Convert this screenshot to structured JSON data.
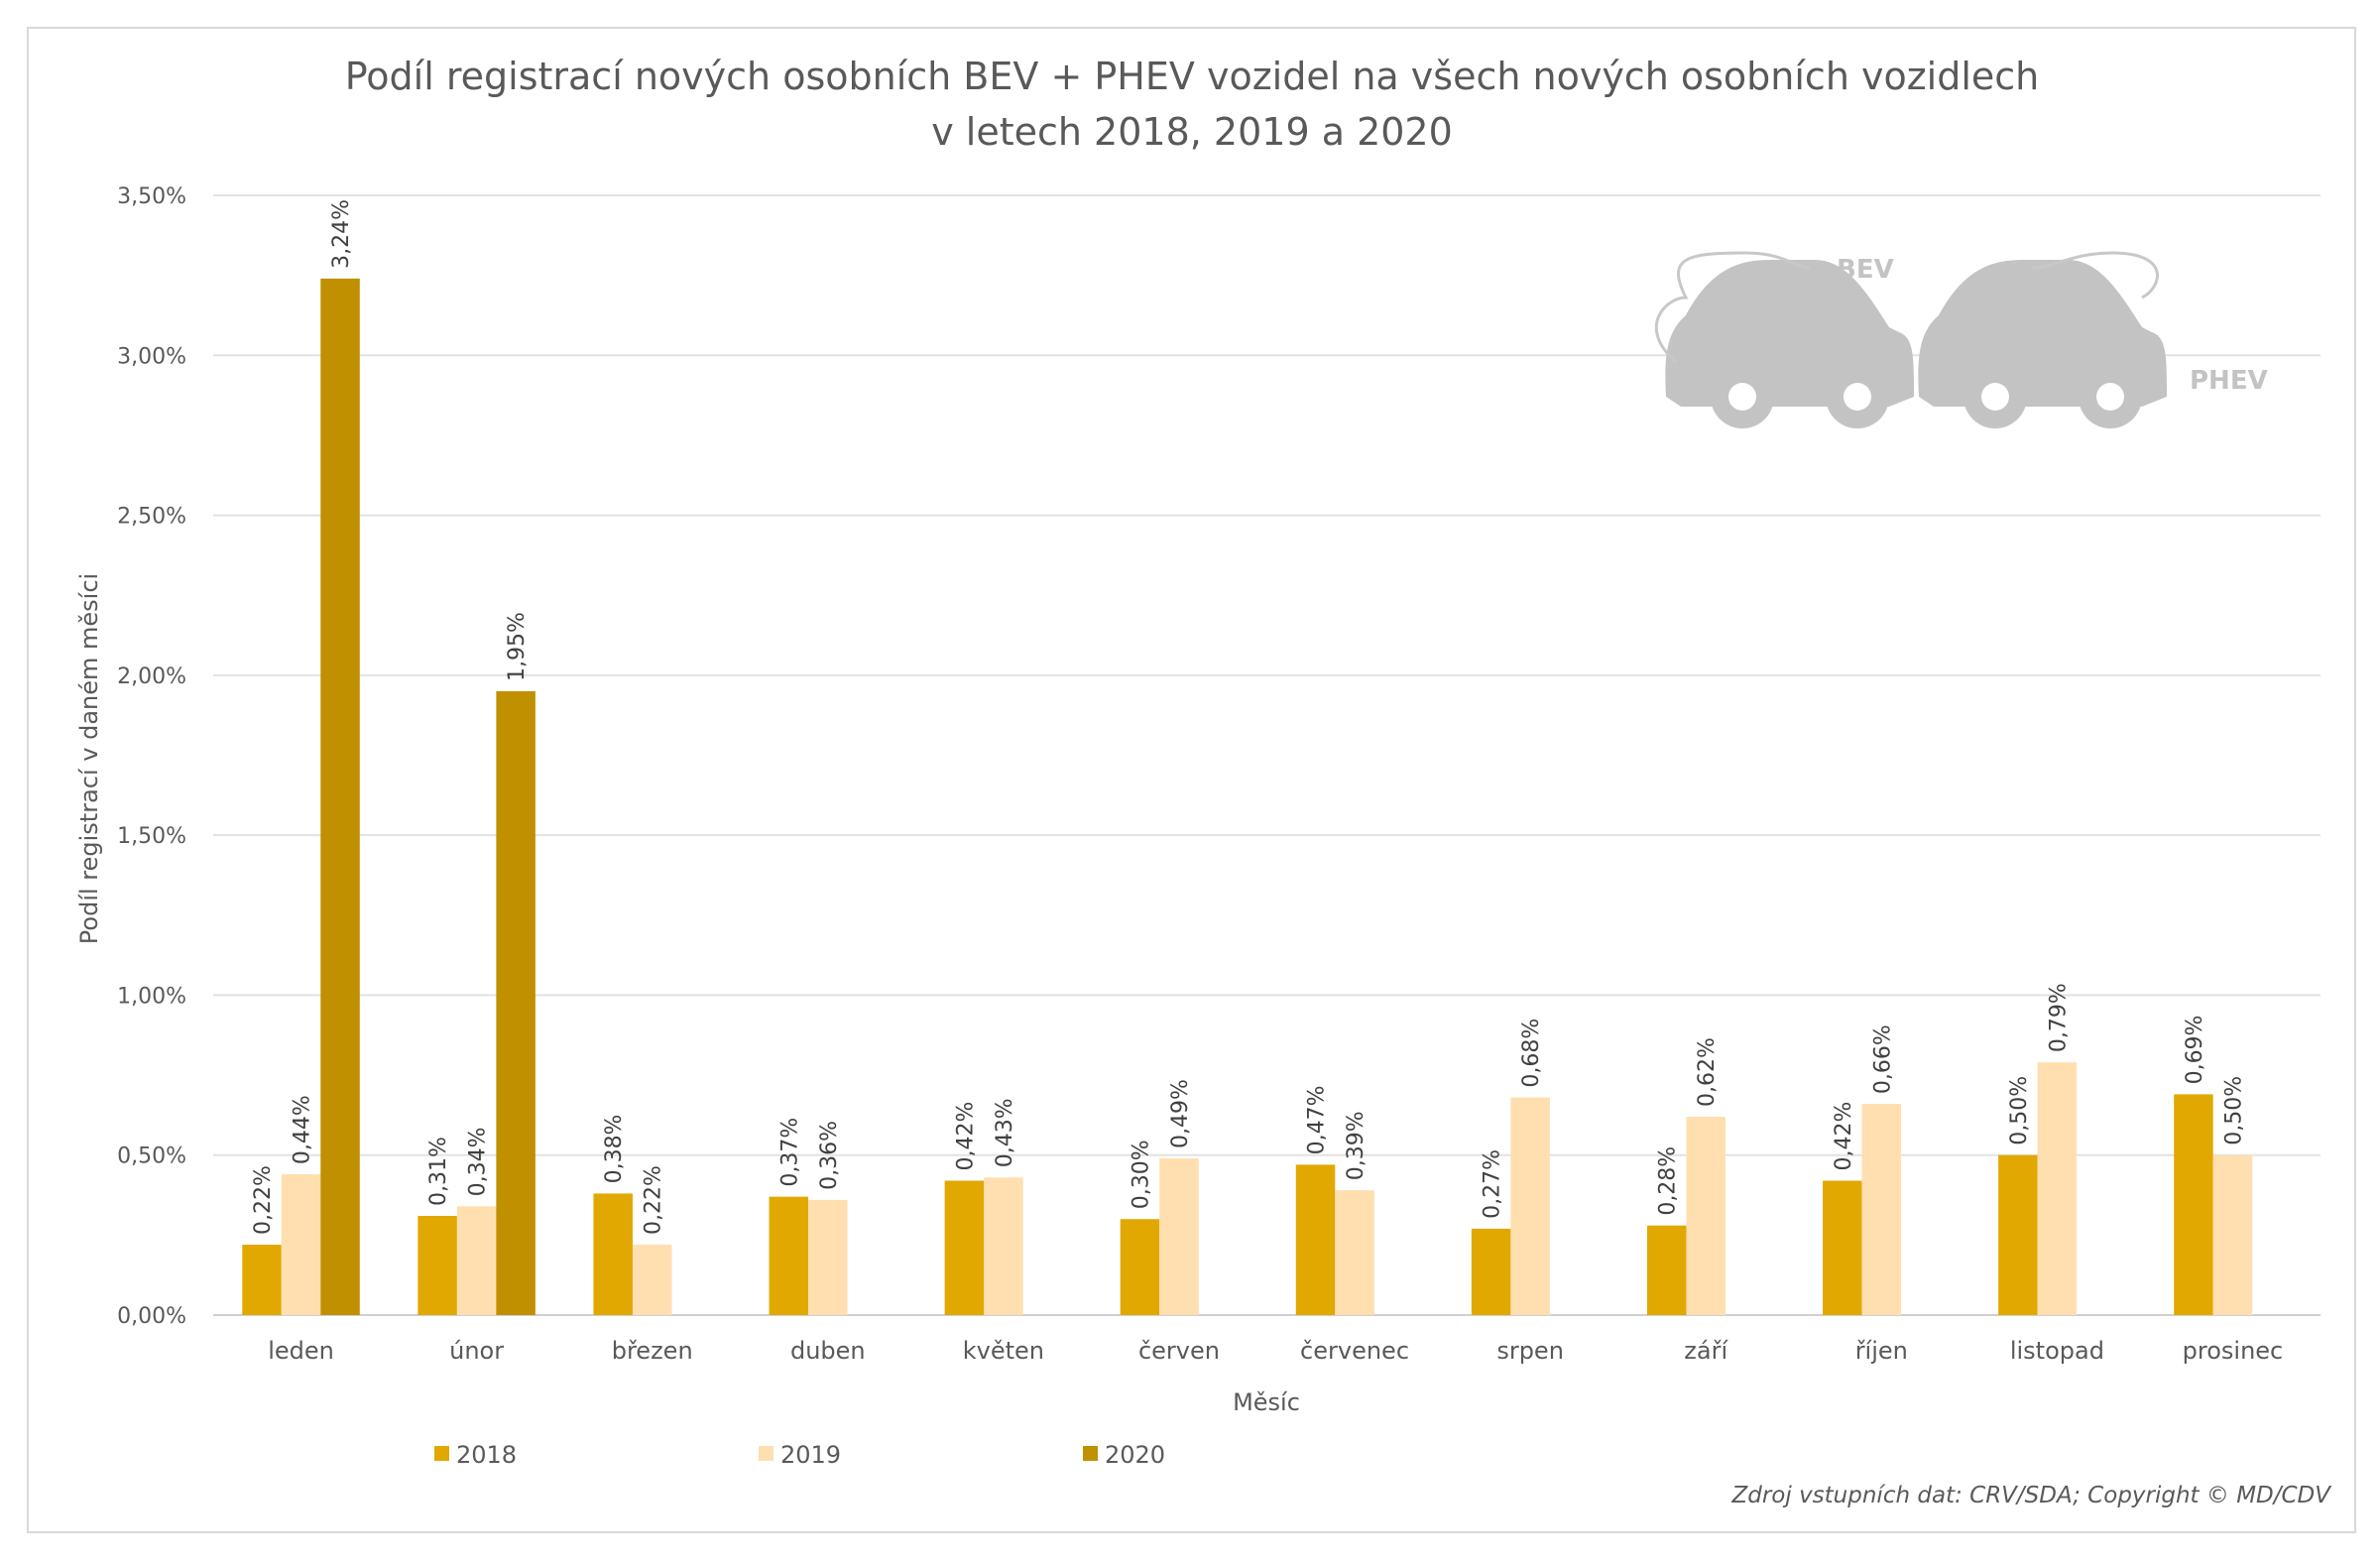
{
  "chart_data": {
    "type": "bar",
    "title": "Podíl registrací nových osobních BEV + PHEV vozidel na všech nových osobních vozidlech",
    "subtitle": "v letech 2018, 2019 a 2020",
    "xlabel": "Měsíc",
    "ylabel": "Podíl registrací v daném měsíci",
    "ylim": [
      0,
      3.5
    ],
    "yticks": [
      "0,00%",
      "0,50%",
      "1,00%",
      "1,50%",
      "2,00%",
      "2,50%",
      "3,00%",
      "3,50%"
    ],
    "grid": true,
    "legend_placement": "bottom-left",
    "categories": [
      "leden",
      "únor",
      "březen",
      "duben",
      "květen",
      "červen",
      "červenec",
      "srpen",
      "září",
      "říjen",
      "listopad",
      "prosinec"
    ],
    "series": [
      {
        "name": "2018",
        "color": "#E0A800",
        "values": [
          0.22,
          0.31,
          0.38,
          0.37,
          0.42,
          0.3,
          0.47,
          0.27,
          0.28,
          0.42,
          0.5,
          0.69
        ]
      },
      {
        "name": "2019",
        "color": "#FFDFB0",
        "values": [
          0.44,
          0.34,
          0.22,
          0.36,
          0.43,
          0.49,
          0.39,
          0.68,
          0.62,
          0.66,
          0.79,
          0.5
        ]
      },
      {
        "name": "2020",
        "color": "#C09000",
        "values": [
          3.24,
          1.95,
          null,
          null,
          null,
          null,
          null,
          null,
          null,
          null,
          null,
          null
        ]
      }
    ],
    "source": "Zdroj vstupních dat: CRV/SDA; Copyright © MD/CDV",
    "logo_text": [
      "BEV",
      "PHEV"
    ]
  }
}
